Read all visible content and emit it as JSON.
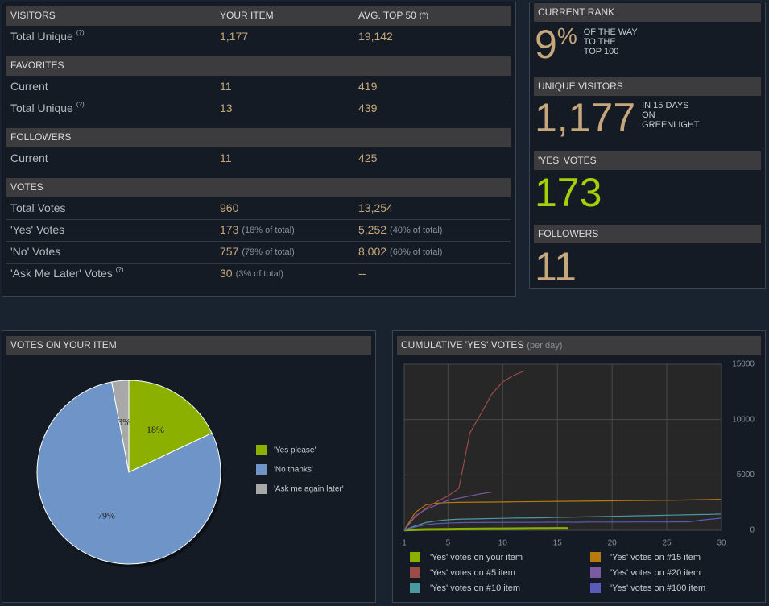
{
  "stats": {
    "columns": [
      {
        "label": "YOUR ITEM"
      },
      {
        "label": "AVG. TOP 50",
        "help": "(?)"
      }
    ],
    "sections": [
      {
        "title": "VISITORS",
        "rows": [
          {
            "label": "Total Unique",
            "help": "(?)",
            "cells": [
              {
                "text": "1,177"
              },
              {
                "text": "19,142"
              }
            ]
          }
        ]
      },
      {
        "title": "FAVORITES",
        "rows": [
          {
            "label": "Current",
            "cells": [
              {
                "text": "11"
              },
              {
                "text": "419"
              }
            ]
          },
          {
            "label": "Total Unique",
            "help": "(?)",
            "cells": [
              {
                "text": "13"
              },
              {
                "text": "439"
              }
            ]
          }
        ]
      },
      {
        "title": "FOLLOWERS",
        "rows": [
          {
            "label": "Current",
            "cells": [
              {
                "text": "11"
              },
              {
                "text": "425"
              }
            ]
          }
        ]
      },
      {
        "title": "VOTES",
        "rows": [
          {
            "label": "Total Votes",
            "cells": [
              {
                "text": "960"
              },
              {
                "text": "13,254"
              }
            ]
          },
          {
            "label": "'Yes' Votes",
            "cells": [
              {
                "text": "173",
                "note": "(18% of total)"
              },
              {
                "text": "5,252",
                "note": "(40% of total)"
              }
            ]
          },
          {
            "label": "'No' Votes",
            "cells": [
              {
                "text": "757",
                "note": "(79% of total)"
              },
              {
                "text": "8,002",
                "note": "(60% of total)"
              }
            ]
          },
          {
            "label": "'Ask Me Later' Votes",
            "help": "(?)",
            "cells": [
              {
                "text": "30",
                "note": "(3% of total)"
              },
              {
                "text": "--"
              }
            ]
          }
        ]
      }
    ]
  },
  "summary": [
    {
      "title": "CURRENT RANK",
      "value": "9",
      "unit": "%",
      "lines": [
        "OF THE WAY",
        "TO THE",
        "TOP 100"
      ],
      "color": "#c6a77c"
    },
    {
      "title": "UNIQUE VISITORS",
      "value": "1,177",
      "lines": [
        "IN 15 DAYS",
        "ON",
        "GREENLIGHT"
      ],
      "color": "#c6a77c"
    },
    {
      "title": "'YES' VOTES",
      "value": "173",
      "color": "#a4d007"
    },
    {
      "title": "FOLLOWERS",
      "value": "11",
      "color": "#c6a77c"
    }
  ],
  "chart_data": [
    {
      "type": "pie",
      "title": "VOTES ON YOUR ITEM",
      "categories": [
        "'Yes please'",
        "'No thanks'",
        "'Ask me again later'"
      ],
      "values": [
        18,
        79,
        3
      ],
      "value_labels": [
        "18%",
        "79%",
        "3%"
      ],
      "colors": [
        "#8cb000",
        "#6e94c8",
        "#a8a8a8"
      ]
    },
    {
      "type": "line",
      "title": "CUMULATIVE 'YES' VOTES",
      "subtitle": "(per day)",
      "x": [
        1,
        2,
        3,
        4,
        5,
        6,
        7,
        8,
        9,
        10,
        11,
        12,
        13,
        14,
        15,
        16,
        17,
        18,
        19,
        20,
        21,
        22,
        23,
        24,
        25,
        26,
        27,
        28,
        29,
        30
      ],
      "xlim": [
        1,
        30
      ],
      "xticks": [
        1,
        5,
        10,
        15,
        20,
        25,
        30
      ],
      "ylim": [
        0,
        15000
      ],
      "yticks": [
        0,
        5000,
        10000,
        15000
      ],
      "grid": true,
      "series": [
        {
          "name": "'Yes' votes on your item",
          "color": "#8cb000",
          "values": [
            20,
            50,
            70,
            85,
            95,
            105,
            115,
            125,
            135,
            140,
            148,
            155,
            160,
            165,
            170,
            173,
            null,
            null,
            null,
            null,
            null,
            null,
            null,
            null,
            null,
            null,
            null,
            null,
            null,
            null
          ]
        },
        {
          "name": "'Yes' votes on #5 item",
          "color": "#9c4a4a",
          "values": [
            0,
            1200,
            2000,
            2600,
            3100,
            3800,
            8800,
            10500,
            12300,
            13400,
            14000,
            14400,
            null,
            null,
            null,
            null,
            null,
            null,
            null,
            null,
            null,
            null,
            null,
            null,
            null,
            null,
            null,
            null,
            null,
            null
          ]
        },
        {
          "name": "'Yes' votes on #10 item",
          "color": "#4a9aa0",
          "values": [
            0,
            400,
            700,
            850,
            950,
            1000,
            1020,
            1040,
            1060,
            1080,
            1100,
            1110,
            1120,
            1140,
            1160,
            1180,
            1200,
            1220,
            1240,
            1260,
            1280,
            1300,
            1320,
            1340,
            1360,
            1380,
            1400,
            1420,
            1440,
            1460
          ]
        },
        {
          "name": "'Yes' votes on #15 item",
          "color": "#b8790e",
          "values": [
            0,
            1600,
            2300,
            2450,
            2500,
            2520,
            2530,
            2540,
            2550,
            2560,
            2570,
            2580,
            2590,
            2600,
            2610,
            2620,
            2630,
            2640,
            2650,
            2660,
            2670,
            2680,
            2690,
            2700,
            2710,
            2720,
            2740,
            2760,
            2780,
            2800
          ]
        },
        {
          "name": "'Yes' votes on #20 item",
          "color": "#7a5aa0",
          "values": [
            0,
            1300,
            1900,
            2300,
            2700,
            2900,
            3100,
            3300,
            3450,
            null,
            null,
            null,
            null,
            null,
            null,
            null,
            null,
            null,
            null,
            null,
            null,
            null,
            null,
            null,
            null,
            null,
            null,
            null,
            null,
            null
          ]
        },
        {
          "name": "'Yes' votes on #100 item",
          "color": "#5a5ab8",
          "values": [
            0,
            300,
            500,
            600,
            650,
            680,
            700,
            700,
            710,
            710,
            720,
            720,
            720,
            730,
            730,
            730,
            730,
            740,
            740,
            740,
            740,
            750,
            750,
            750,
            750,
            760,
            760,
            900,
            1000,
            1100
          ]
        }
      ]
    }
  ]
}
